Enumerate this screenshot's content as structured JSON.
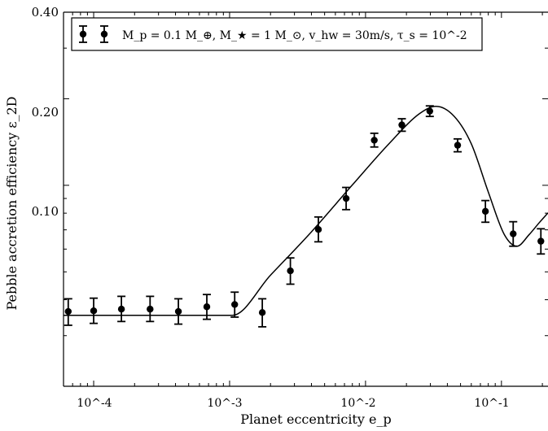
{
  "chart_data": {
    "type": "scatter",
    "xlabel": "Planet eccentricity e_p",
    "ylabel": "Pebble accretion efficiency ε_2D",
    "xscale": "log",
    "yscale": "log",
    "xlim": [
      6e-05,
      0.22
    ],
    "ylim": [
      0.02,
      0.4
    ],
    "x_tick_labels": [
      "10^-4",
      "10^-3",
      "10^-2",
      "10^-1"
    ],
    "y_tick_labels": [
      "0.10",
      "0.20",
      "0.40"
    ],
    "legend": {
      "placement": "top-left",
      "label": "M_p = 0.1 M_⊕,  M_★ = 1 M_⊙,  v_hw = 30m/s,  τ_s = 10^-2"
    },
    "series": [
      {
        "type": "errorbar",
        "x": [
          6.5e-05,
          0.0001,
          0.00016,
          0.00026,
          0.00042,
          0.00068,
          0.00109,
          0.00174,
          0.0028,
          0.0045,
          0.0072,
          0.0116,
          0.0185,
          0.0297,
          0.0476,
          0.0762,
          0.122,
          0.195
        ],
        "y": [
          0.0364,
          0.0366,
          0.0371,
          0.0371,
          0.0364,
          0.0378,
          0.0385,
          0.0361,
          0.0504,
          0.0702,
          0.09,
          0.1435,
          0.1622,
          0.1811,
          0.1378,
          0.0812,
          0.0678,
          0.0639
        ],
        "y_low": [
          0.0326,
          0.0331,
          0.0336,
          0.0336,
          0.0329,
          0.0342,
          0.0348,
          0.0322,
          0.0453,
          0.0636,
          0.0823,
          0.1359,
          0.1542,
          0.1736,
          0.1308,
          0.0744,
          0.0614,
          0.0577
        ],
        "y_high": [
          0.0403,
          0.0405,
          0.0411,
          0.0411,
          0.0403,
          0.0417,
          0.0425,
          0.0403,
          0.0559,
          0.0776,
          0.0983,
          0.1517,
          0.1704,
          0.1889,
          0.145,
          0.0885,
          0.0747,
          0.0706
        ]
      },
      {
        "type": "line",
        "x": [
          6e-05,
          0.00105,
          0.002,
          0.004,
          0.008,
          0.015,
          0.025,
          0.033,
          0.045,
          0.06,
          0.08,
          0.105,
          0.13,
          0.16,
          0.19,
          0.22
        ],
        "y": [
          0.0353,
          0.0353,
          0.0487,
          0.0689,
          0.1003,
          0.1401,
          0.1776,
          0.1882,
          0.1735,
          0.1394,
          0.0948,
          0.0674,
          0.0614,
          0.0674,
          0.0742,
          0.0802
        ]
      }
    ]
  }
}
